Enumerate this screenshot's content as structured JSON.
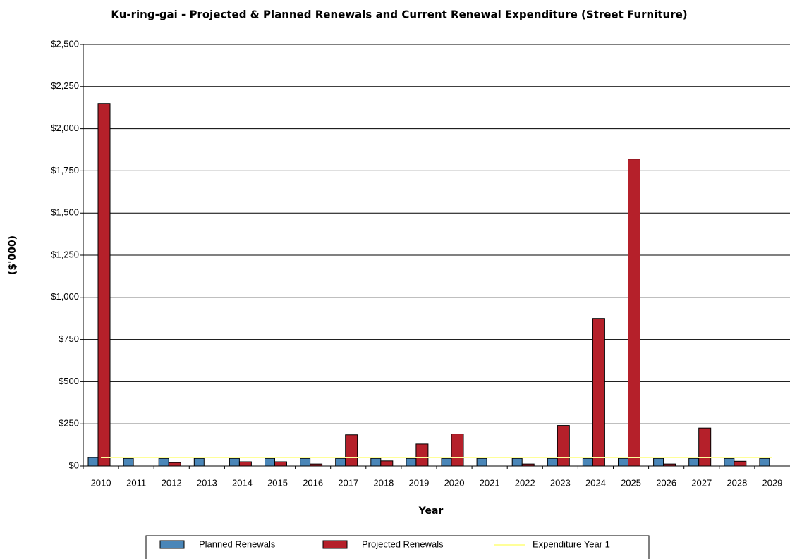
{
  "chart_data": {
    "type": "bar",
    "title": "Ku-ring-gai - Projected & Planned Renewals and Current Renewal Expenditure (Street Furniture)",
    "x_label": "Year",
    "y_label": "($'000)",
    "categories": [
      "2010",
      "2011",
      "2012",
      "2013",
      "2014",
      "2015",
      "2016",
      "2017",
      "2018",
      "2019",
      "2020",
      "2021",
      "2022",
      "2023",
      "2024",
      "2025",
      "2026",
      "2027",
      "2028",
      "2029"
    ],
    "series": [
      {
        "name": "Planned Renewals",
        "type": "bar",
        "color": "#4a86b8",
        "values": [
          50,
          45,
          45,
          45,
          45,
          45,
          45,
          45,
          45,
          45,
          45,
          45,
          45,
          45,
          45,
          45,
          45,
          45,
          45,
          45
        ]
      },
      {
        "name": "Projected Renewals",
        "type": "bar",
        "color": "#b5202a",
        "values": [
          2150,
          0,
          20,
          0,
          25,
          25,
          12,
          185,
          30,
          130,
          190,
          0,
          12,
          240,
          875,
          1820,
          12,
          225,
          28,
          0
        ]
      },
      {
        "name": "Expenditure Year 1",
        "type": "line",
        "color": "#ffff99",
        "values": [
          50,
          50,
          50,
          50,
          50,
          50,
          50,
          50,
          50,
          50,
          50,
          50,
          50,
          50,
          50,
          50,
          50,
          50,
          50,
          50
        ]
      }
    ],
    "ylim": [
      0,
      2500
    ],
    "yticks": [
      {
        "value": 0,
        "label": "$0"
      },
      {
        "value": 250,
        "label": "$250"
      },
      {
        "value": 500,
        "label": "$500"
      },
      {
        "value": 750,
        "label": "$750"
      },
      {
        "value": 1000,
        "label": "$1,000"
      },
      {
        "value": 1250,
        "label": "$1,250"
      },
      {
        "value": 1500,
        "label": "$1,500"
      },
      {
        "value": 1750,
        "label": "$1,750"
      },
      {
        "value": 2000,
        "label": "$2,000"
      },
      {
        "value": 2250,
        "label": "$2,250"
      },
      {
        "value": 2500,
        "label": "$2,500"
      }
    ],
    "grid": true,
    "legend": "bottom"
  }
}
